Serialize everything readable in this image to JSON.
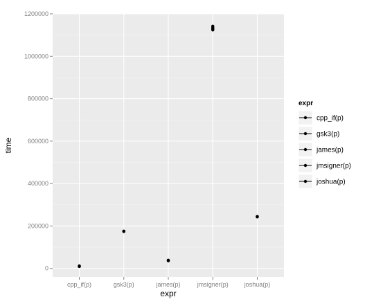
{
  "chart_data": {
    "type": "scatter",
    "title": "",
    "xlabel": "expr",
    "ylabel": "time",
    "categories": [
      "cpp_if(p)",
      "gsk3(p)",
      "james(p)",
      "jmsigner(p)",
      "joshua(p)"
    ],
    "yticks": [
      0,
      200000,
      400000,
      600000,
      800000,
      1000000,
      1200000
    ],
    "ylim": [
      0,
      1200000
    ],
    "grid": true,
    "legend_position": "right",
    "legend": {
      "title": "expr",
      "entries": [
        "cpp_if(p)",
        "gsk3(p)",
        "james(p)",
        "jmsigner(p)",
        "joshua(p)"
      ]
    },
    "series": [
      {
        "category": "cpp_if(p)",
        "points": [
          9000,
          10000,
          12000
        ]
      },
      {
        "category": "gsk3(p)",
        "points": [
          174000,
          175000,
          176000
        ]
      },
      {
        "category": "james(p)",
        "points": [
          36000,
          37000,
          39000
        ]
      },
      {
        "category": "jmsigner(p)",
        "points": [
          1124000,
          1128000,
          1131000,
          1136000,
          1142000
        ]
      },
      {
        "category": "joshua(p)",
        "points": [
          243000,
          244000,
          245000
        ]
      }
    ],
    "colors": {
      "panel": "#ebebeb",
      "grid_major": "#ffffff",
      "grid_minor": "#f5f5f5",
      "point": "#000000",
      "tick_text": "#7f7f7f"
    }
  }
}
